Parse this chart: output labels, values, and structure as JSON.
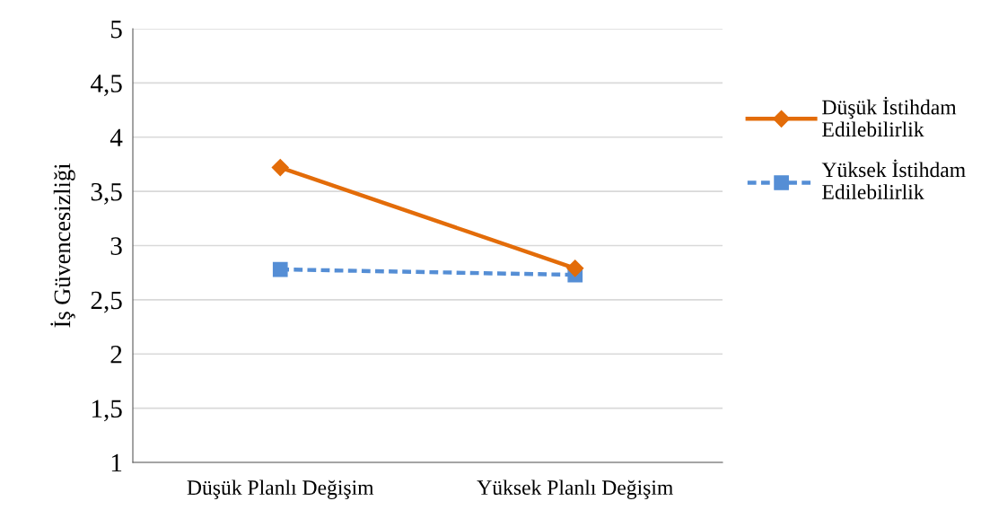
{
  "chart_data": {
    "type": "line",
    "ylabel": "İş Güvencesizliği",
    "categories": [
      "Düşük Planlı Değişim",
      "Yüksek Planlı Değişim"
    ],
    "series": [
      {
        "name": "Düşük İstihdam\nEdilebilirlik",
        "color": "#e36c09",
        "values": [
          3.72,
          2.79
        ],
        "marker": "diamond",
        "line_style": "solid"
      },
      {
        "name": "Yüksek İstihdam\nEdilebilirlik",
        "color": "#558ed5",
        "values": [
          2.78,
          2.73
        ],
        "marker": "square",
        "line_style": "dashed"
      }
    ],
    "ylim": [
      1,
      5
    ],
    "yticks": [
      1,
      {
        "value": 1.5,
        "label": "1,5"
      },
      2,
      {
        "value": 2.5,
        "label": "2,5"
      },
      3,
      {
        "value": 3.5,
        "label": "3,5"
      },
      4,
      {
        "value": 4.5,
        "label": "4,5"
      },
      5
    ],
    "grid": "y",
    "legend": "right"
  }
}
